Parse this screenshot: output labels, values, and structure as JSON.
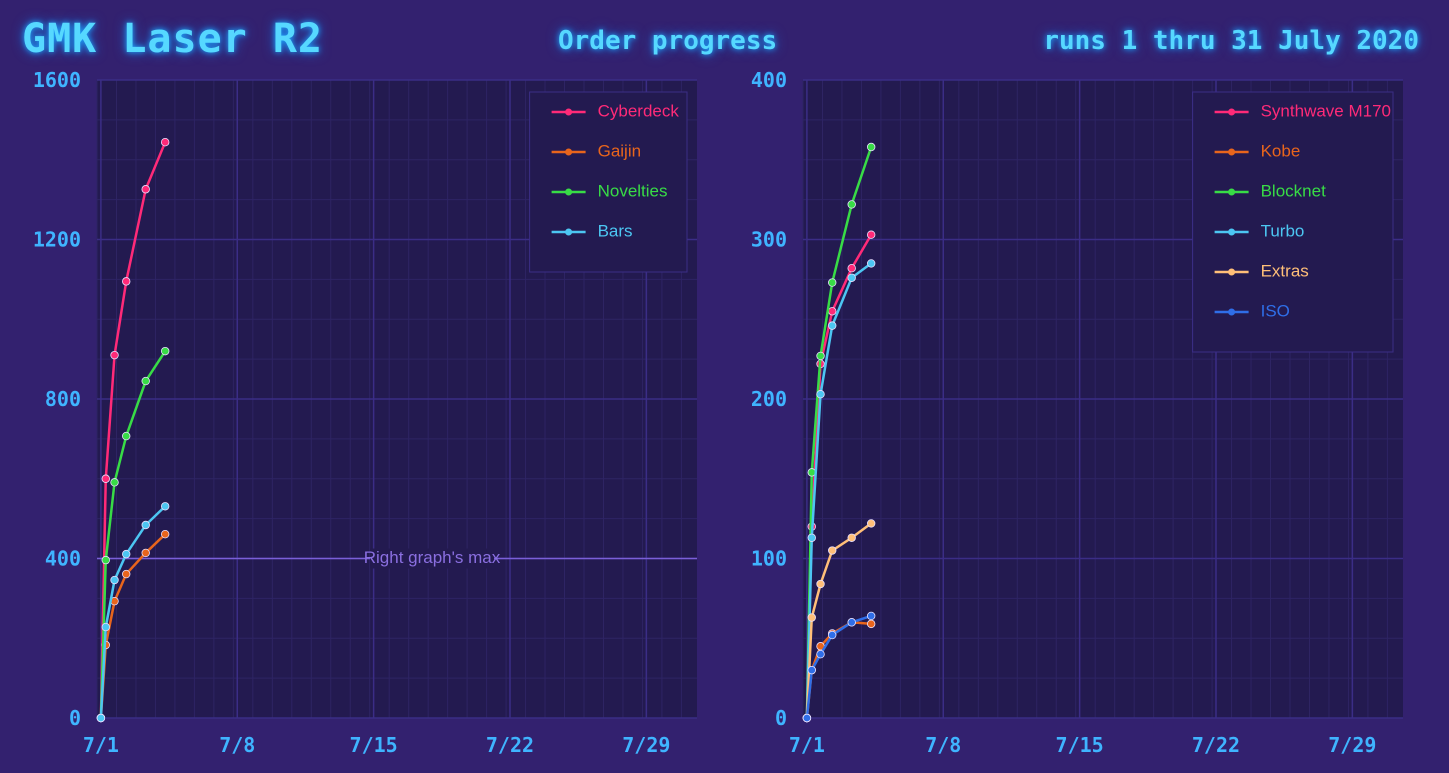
{
  "header": {
    "title": "GMK Laser R2",
    "subtitle": "Order progress",
    "date_range": "runs 1 thru 31 July 2020"
  },
  "chart_data": [
    {
      "type": "line",
      "xlim": [
        0.8,
        31.6
      ],
      "xticks": [
        {
          "value": 1,
          "label": "7/1"
        },
        {
          "value": 8,
          "label": "7/8"
        },
        {
          "value": 15,
          "label": "7/15"
        },
        {
          "value": 22,
          "label": "7/22"
        },
        {
          "value": 29,
          "label": "7/29"
        }
      ],
      "ylim": [
        0,
        1600
      ],
      "yticks": [
        0,
        400,
        800,
        1200,
        1600
      ],
      "grid": true,
      "legend": "top-right",
      "x": [
        1,
        1.25,
        1.7,
        2.3,
        3.3,
        4.3
      ],
      "series": [
        {
          "name": "Cyberdeck",
          "color": "#ff2a78",
          "values": [
            0,
            600,
            910,
            1095,
            1326,
            1444
          ]
        },
        {
          "name": "Gaijin",
          "color": "#e8651c",
          "values": [
            0,
            183,
            293,
            361,
            414,
            461
          ]
        },
        {
          "name": "Novelties",
          "color": "#38dc46",
          "values": [
            0,
            396,
            591,
            707,
            845,
            920
          ]
        },
        {
          "name": "Bars",
          "color": "#4cc6f2",
          "values": [
            0,
            228,
            346,
            411,
            484,
            531
          ]
        }
      ],
      "annotations": [
        {
          "text": "Right graph's max",
          "y": 400
        }
      ]
    },
    {
      "type": "line",
      "xlim": [
        0.8,
        31.6
      ],
      "xticks": [
        {
          "value": 1,
          "label": "7/1"
        },
        {
          "value": 8,
          "label": "7/8"
        },
        {
          "value": 15,
          "label": "7/15"
        },
        {
          "value": 22,
          "label": "7/22"
        },
        {
          "value": 29,
          "label": "7/29"
        }
      ],
      "ylim": [
        0,
        400
      ],
      "yticks": [
        0,
        100,
        200,
        300,
        400
      ],
      "grid": true,
      "legend": "top-right",
      "x": [
        1,
        1.25,
        1.7,
        2.3,
        3.3,
        4.3
      ],
      "series": [
        {
          "name": "Synthwave M170",
          "color": "#ff2a78",
          "values": [
            0,
            120,
            222,
            255,
            282,
            303
          ]
        },
        {
          "name": "Kobe",
          "color": "#e8651c",
          "values": [
            0,
            30,
            45,
            53,
            60,
            59
          ]
        },
        {
          "name": "Blocknet",
          "color": "#38dc46",
          "values": [
            0,
            154,
            227,
            273,
            322,
            358
          ]
        },
        {
          "name": "Turbo",
          "color": "#4cc6f2",
          "values": [
            0,
            113,
            203,
            246,
            276,
            285
          ]
        },
        {
          "name": "Extras",
          "color": "#ffbf78",
          "values": [
            0,
            63,
            84,
            105,
            113,
            122
          ]
        },
        {
          "name": "ISO",
          "color": "#2f6ee8",
          "values": [
            0,
            30,
            40,
            52,
            60,
            64
          ]
        }
      ]
    }
  ]
}
